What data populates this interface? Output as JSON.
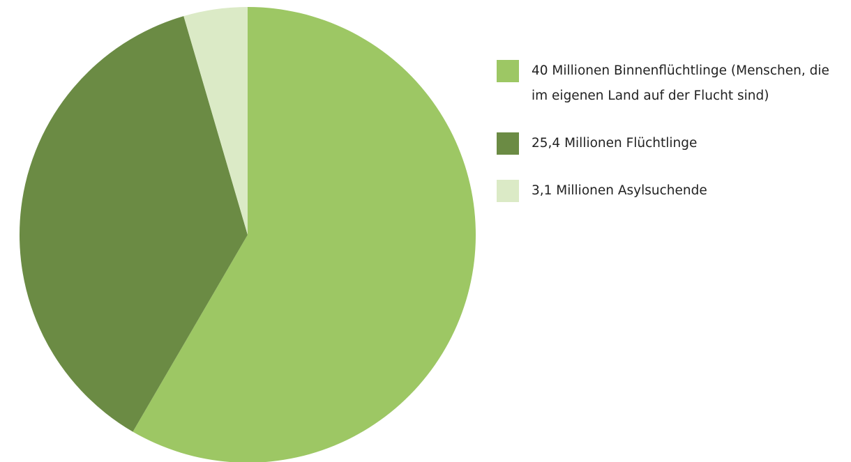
{
  "chart_data": {
    "type": "pie",
    "categories": [
      "40 Millionen Binnenflüchtlinge (Menschen, die im eigenen Land auf der Flucht sind)",
      "25,4 Millionen Flüchtlinge",
      "3,1 Millionen Asylsuchende"
    ],
    "values": [
      40,
      25.4,
      3.1
    ],
    "colors": [
      "#9dc764",
      "#6b8b44",
      "#dbeac6"
    ],
    "legend": "right"
  }
}
